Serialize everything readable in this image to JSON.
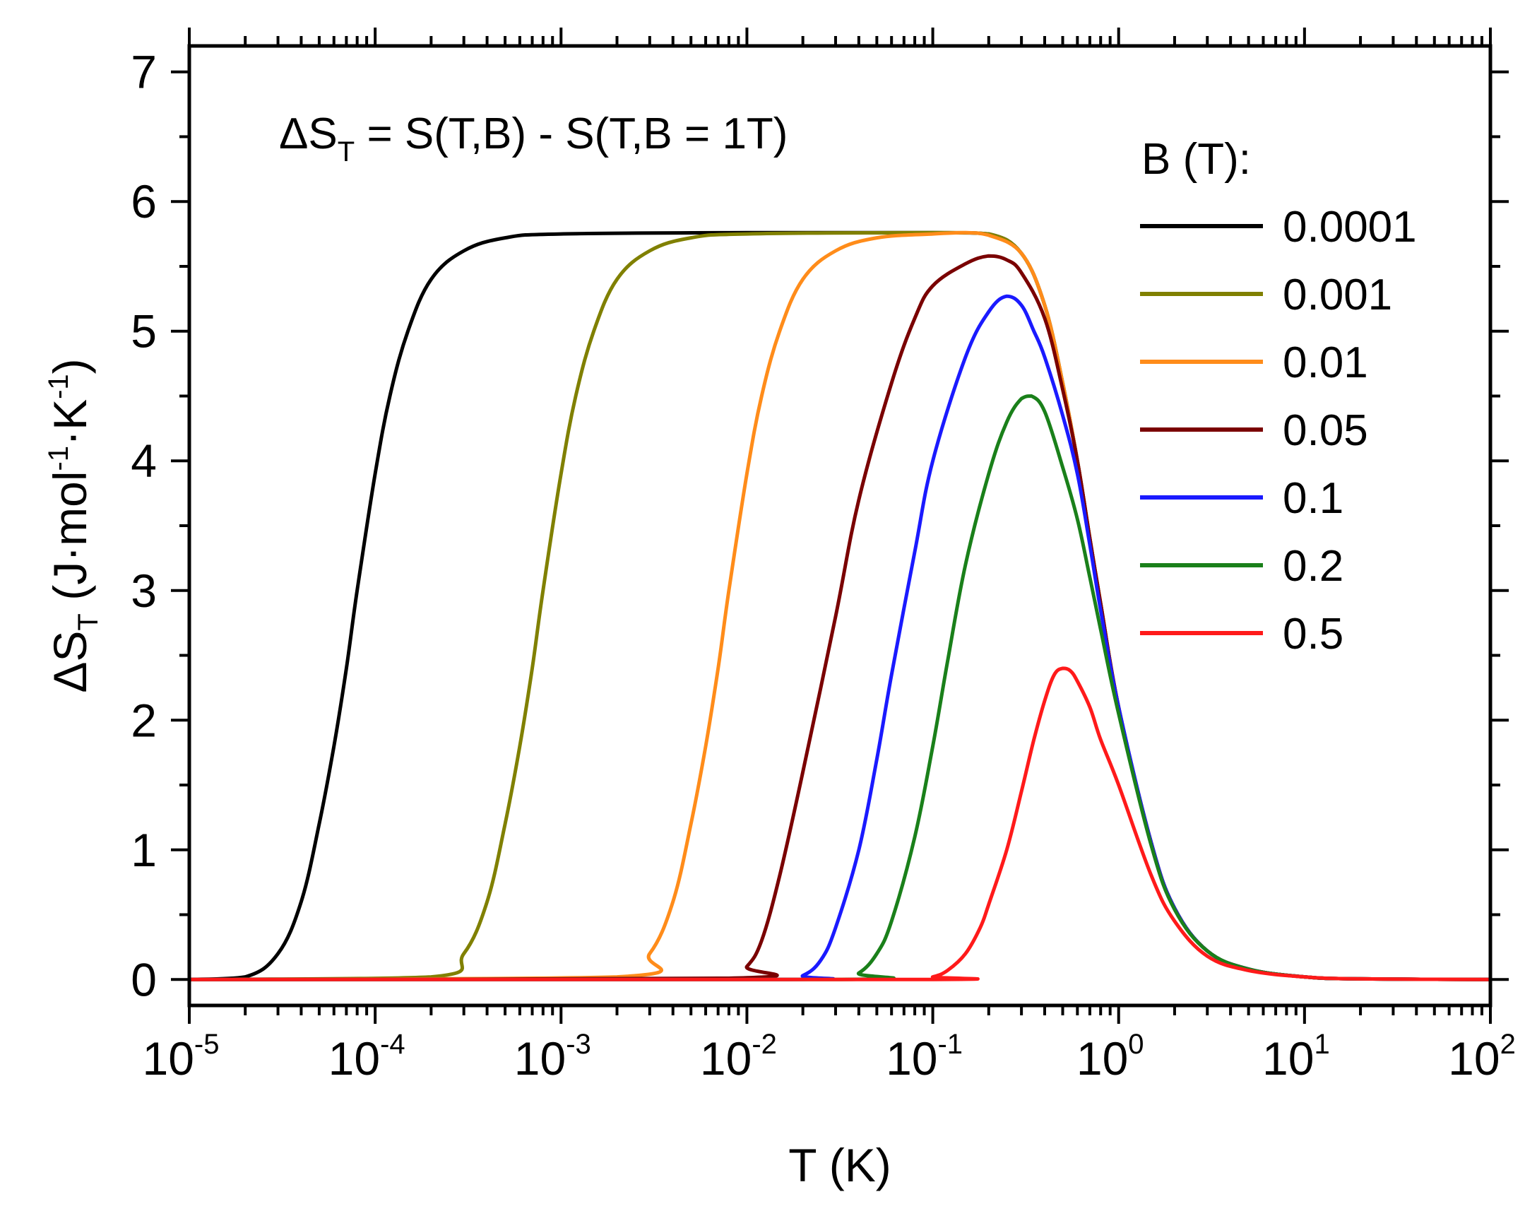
{
  "chart_data": {
    "type": "line",
    "x_scale": "log",
    "xlabel": "T (K)",
    "ylabel": "ΔS_T (J·mol^-1·K^-1)",
    "ylabel_parts": {
      "delta": "ΔS",
      "sub": "T",
      "unit_pre": " (J·mol",
      "sup1": "-1",
      "mid": "·K",
      "sup2": "-1",
      "unit_post": ")"
    },
    "xlim": [
      1e-05,
      100
    ],
    "ylim": [
      -0.2,
      7.2
    ],
    "x_ticks": [
      {
        "value": 1e-05,
        "base": "10",
        "exp": "-5"
      },
      {
        "value": 0.0001,
        "base": "10",
        "exp": "-4"
      },
      {
        "value": 0.001,
        "base": "10",
        "exp": "-3"
      },
      {
        "value": 0.01,
        "base": "10",
        "exp": "-2"
      },
      {
        "value": 0.1,
        "base": "10",
        "exp": "-1"
      },
      {
        "value": 1,
        "base": "10",
        "exp": "0"
      },
      {
        "value": 10,
        "base": "10",
        "exp": "1"
      },
      {
        "value": 100,
        "base": "10",
        "exp": "2"
      }
    ],
    "y_ticks": [
      0,
      1,
      2,
      3,
      4,
      5,
      6,
      7
    ],
    "annotation": {
      "pre": "ΔS",
      "sub": "T",
      "post": " = S(T,B) - S(T,B = 1T)"
    },
    "legend": {
      "title": "B (T):",
      "position": "right"
    },
    "series": [
      {
        "name": "0.0001",
        "color": "#000000",
        "points": [
          [
            1e-05,
            0
          ],
          [
            2e-05,
            0.02
          ],
          [
            3e-05,
            0.2
          ],
          [
            4e-05,
            0.6
          ],
          [
            5e-05,
            1.2
          ],
          [
            6e-05,
            1.8
          ],
          [
            7e-05,
            2.4
          ],
          [
            8e-05,
            3.0
          ],
          [
            0.0001,
            3.9
          ],
          [
            0.00012,
            4.5
          ],
          [
            0.00015,
            5.0
          ],
          [
            0.0002,
            5.4
          ],
          [
            0.0003,
            5.62
          ],
          [
            0.0005,
            5.72
          ],
          [
            0.001,
            5.75
          ],
          [
            0.01,
            5.76
          ],
          [
            0.1,
            5.76
          ],
          [
            0.2,
            5.75
          ],
          [
            0.3,
            5.6
          ],
          [
            0.4,
            5.2
          ],
          [
            0.5,
            4.6
          ],
          [
            0.6,
            4.0
          ],
          [
            0.7,
            3.4
          ],
          [
            0.8,
            2.9
          ],
          [
            1.0,
            2.1
          ],
          [
            1.5,
            1.05
          ],
          [
            2,
            0.55
          ],
          [
            3,
            0.22
          ],
          [
            5,
            0.08
          ],
          [
            10,
            0.02
          ],
          [
            20,
            0.005
          ],
          [
            100,
            0
          ]
        ]
      },
      {
        "name": "0.001",
        "color": "#808000",
        "points": [
          [
            1e-05,
            0
          ],
          [
            0.0002,
            0.02
          ],
          [
            0.0003,
            0.2
          ],
          [
            0.0004,
            0.6
          ],
          [
            0.0005,
            1.2
          ],
          [
            0.0006,
            1.8
          ],
          [
            0.0007,
            2.4
          ],
          [
            0.0008,
            3.0
          ],
          [
            0.001,
            3.9
          ],
          [
            0.0012,
            4.5
          ],
          [
            0.0015,
            5.0
          ],
          [
            0.002,
            5.4
          ],
          [
            0.003,
            5.62
          ],
          [
            0.005,
            5.72
          ],
          [
            0.01,
            5.75
          ],
          [
            0.1,
            5.76
          ],
          [
            0.2,
            5.75
          ],
          [
            0.3,
            5.6
          ],
          [
            0.4,
            5.2
          ],
          [
            0.5,
            4.6
          ],
          [
            0.6,
            4.0
          ],
          [
            0.7,
            3.4
          ],
          [
            0.8,
            2.9
          ],
          [
            1.0,
            2.1
          ],
          [
            1.5,
            1.05
          ],
          [
            2,
            0.55
          ],
          [
            3,
            0.22
          ],
          [
            5,
            0.08
          ],
          [
            10,
            0.02
          ],
          [
            20,
            0.005
          ],
          [
            100,
            0
          ]
        ]
      },
      {
        "name": "0.01",
        "color": "#ff8c1a",
        "points": [
          [
            1e-05,
            0
          ],
          [
            0.002,
            0.02
          ],
          [
            0.003,
            0.2
          ],
          [
            0.004,
            0.6
          ],
          [
            0.005,
            1.2
          ],
          [
            0.006,
            1.8
          ],
          [
            0.007,
            2.4
          ],
          [
            0.008,
            3.0
          ],
          [
            0.01,
            3.9
          ],
          [
            0.012,
            4.5
          ],
          [
            0.015,
            5.0
          ],
          [
            0.02,
            5.4
          ],
          [
            0.03,
            5.62
          ],
          [
            0.05,
            5.72
          ],
          [
            0.1,
            5.75
          ],
          [
            0.15,
            5.76
          ],
          [
            0.2,
            5.74
          ],
          [
            0.3,
            5.6
          ],
          [
            0.4,
            5.2
          ],
          [
            0.5,
            4.6
          ],
          [
            0.6,
            4.0
          ],
          [
            0.7,
            3.4
          ],
          [
            0.8,
            2.9
          ],
          [
            1.0,
            2.1
          ],
          [
            1.5,
            1.05
          ],
          [
            2,
            0.55
          ],
          [
            3,
            0.22
          ],
          [
            5,
            0.08
          ],
          [
            10,
            0.02
          ],
          [
            20,
            0.005
          ],
          [
            100,
            0
          ]
        ]
      },
      {
        "name": "0.05",
        "color": "#7a0000",
        "points": [
          [
            1e-05,
            0
          ],
          [
            0.008,
            0.01
          ],
          [
            0.01,
            0.1
          ],
          [
            0.012,
            0.3
          ],
          [
            0.015,
            0.8
          ],
          [
            0.02,
            1.6
          ],
          [
            0.03,
            2.8
          ],
          [
            0.04,
            3.7
          ],
          [
            0.06,
            4.6
          ],
          [
            0.08,
            5.1
          ],
          [
            0.1,
            5.35
          ],
          [
            0.15,
            5.52
          ],
          [
            0.2,
            5.58
          ],
          [
            0.25,
            5.55
          ],
          [
            0.3,
            5.45
          ],
          [
            0.4,
            5.1
          ],
          [
            0.5,
            4.55
          ],
          [
            0.6,
            4.0
          ],
          [
            0.7,
            3.4
          ],
          [
            0.8,
            2.9
          ],
          [
            1.0,
            2.1
          ],
          [
            1.5,
            1.05
          ],
          [
            2,
            0.55
          ],
          [
            3,
            0.22
          ],
          [
            5,
            0.08
          ],
          [
            10,
            0.02
          ],
          [
            20,
            0.005
          ],
          [
            100,
            0
          ]
        ]
      },
      {
        "name": "0.1",
        "color": "#1a1aff",
        "points": [
          [
            1e-05,
            0
          ],
          [
            0.015,
            0
          ],
          [
            0.02,
            0.03
          ],
          [
            0.025,
            0.15
          ],
          [
            0.03,
            0.4
          ],
          [
            0.04,
            1.0
          ],
          [
            0.05,
            1.7
          ],
          [
            0.06,
            2.35
          ],
          [
            0.08,
            3.3
          ],
          [
            0.1,
            4.0
          ],
          [
            0.15,
            4.8
          ],
          [
            0.2,
            5.15
          ],
          [
            0.25,
            5.27
          ],
          [
            0.3,
            5.2
          ],
          [
            0.35,
            5.0
          ],
          [
            0.4,
            4.8
          ],
          [
            0.5,
            4.35
          ],
          [
            0.6,
            3.9
          ],
          [
            0.7,
            3.35
          ],
          [
            0.8,
            2.85
          ],
          [
            1.0,
            2.1
          ],
          [
            1.5,
            1.05
          ],
          [
            2,
            0.55
          ],
          [
            3,
            0.22
          ],
          [
            5,
            0.08
          ],
          [
            10,
            0.02
          ],
          [
            20,
            0.005
          ],
          [
            100,
            0
          ]
        ]
      },
      {
        "name": "0.2",
        "color": "#1a801a",
        "points": [
          [
            1e-05,
            0
          ],
          [
            0.03,
            0
          ],
          [
            0.04,
            0.05
          ],
          [
            0.05,
            0.2
          ],
          [
            0.06,
            0.45
          ],
          [
            0.08,
            1.1
          ],
          [
            0.1,
            1.8
          ],
          [
            0.12,
            2.45
          ],
          [
            0.15,
            3.2
          ],
          [
            0.2,
            3.9
          ],
          [
            0.25,
            4.3
          ],
          [
            0.3,
            4.48
          ],
          [
            0.34,
            4.5
          ],
          [
            0.4,
            4.38
          ],
          [
            0.5,
            3.95
          ],
          [
            0.6,
            3.55
          ],
          [
            0.7,
            3.1
          ],
          [
            0.8,
            2.7
          ],
          [
            1.0,
            2.05
          ],
          [
            1.5,
            1.03
          ],
          [
            2,
            0.54
          ],
          [
            3,
            0.22
          ],
          [
            5,
            0.08
          ],
          [
            10,
            0.02
          ],
          [
            20,
            0.005
          ],
          [
            100,
            0
          ]
        ]
      },
      {
        "name": "0.5",
        "color": "#ff1a1a",
        "points": [
          [
            1e-05,
            0
          ],
          [
            0.08,
            0
          ],
          [
            0.1,
            0.02
          ],
          [
            0.12,
            0.07
          ],
          [
            0.15,
            0.2
          ],
          [
            0.18,
            0.4
          ],
          [
            0.2,
            0.58
          ],
          [
            0.25,
            1.0
          ],
          [
            0.3,
            1.45
          ],
          [
            0.35,
            1.85
          ],
          [
            0.4,
            2.15
          ],
          [
            0.45,
            2.35
          ],
          [
            0.5,
            2.4
          ],
          [
            0.55,
            2.38
          ],
          [
            0.6,
            2.3
          ],
          [
            0.7,
            2.1
          ],
          [
            0.8,
            1.85
          ],
          [
            1.0,
            1.5
          ],
          [
            1.5,
            0.8
          ],
          [
            2,
            0.45
          ],
          [
            3,
            0.18
          ],
          [
            5,
            0.07
          ],
          [
            10,
            0.02
          ],
          [
            20,
            0.005
          ],
          [
            100,
            0
          ]
        ]
      }
    ]
  }
}
